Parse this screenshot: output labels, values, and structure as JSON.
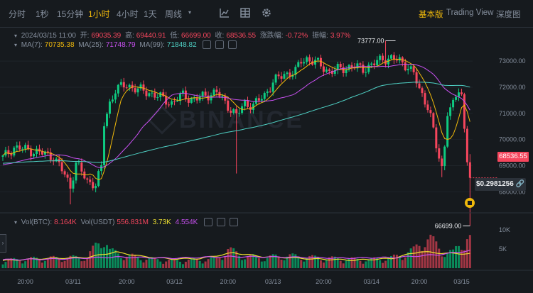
{
  "toolbar": {
    "intervals": [
      "分时",
      "1秒",
      "15分钟",
      "1小时",
      "4小时",
      "1天",
      "周线"
    ],
    "active_interval": "1小时",
    "chart_types": [
      "基本版",
      "Trading View",
      "深度图"
    ],
    "active_chart_type": "基本版"
  },
  "ohlc": {
    "date": "2024/03/15 11:00",
    "open_label": "开:",
    "open": "69035.39",
    "high_label": "高:",
    "high": "69440.91",
    "low_label": "低:",
    "low": "66699.00",
    "close_label": "收:",
    "close": "68536.55",
    "change_label": "涨跌幅:",
    "change": "-0.72%",
    "amplitude_label": "振幅:",
    "amplitude": "3.97%"
  },
  "ma": {
    "ma7_label": "MA(7):",
    "ma7": "70735.38",
    "ma25_label": "MA(25):",
    "ma25": "71748.79",
    "ma99_label": "MA(99):",
    "ma99": "71848.82"
  },
  "vol": {
    "btc_label": "Vol(BTC):",
    "btc": "8.164K",
    "usdt_label": "Vol(USDT)",
    "usdt": "556.831M",
    "v1": "3.73K",
    "v2": "4.554K"
  },
  "watermark": "BINANCE",
  "current_price_tag": "68536.55",
  "position_label": "$0.2981256",
  "colors": {
    "up": "#0ecb81",
    "down": "#f6465d",
    "accent": "#f0b90b",
    "ma7": "#f0b90b",
    "ma25": "#c850f0",
    "ma99": "#4fd1c5"
  },
  "chart_data": {
    "type": "candlestick",
    "price_axis": {
      "ticks": [
        "73000.00",
        "72000.00",
        "71000.00",
        "70000.00",
        "69000.00",
        "68000.00"
      ],
      "ylim": [
        67250,
        73600
      ]
    },
    "volume_axis": {
      "ticks": [
        "10K",
        "5K"
      ],
      "ylim": [
        0,
        12000
      ]
    },
    "x_ticks": [
      "20:00",
      "03/11",
      "20:00",
      "03/12",
      "20:00",
      "03/13",
      "20:00",
      "03/14",
      "20:00",
      "03/15"
    ],
    "max_label": "73777.00",
    "min_label": "66699.00",
    "anchors": [
      [
        0,
        69300
      ],
      [
        4,
        69700
      ],
      [
        9,
        69600
      ],
      [
        13,
        69500
      ],
      [
        18,
        69350
      ],
      [
        22,
        68650
      ],
      [
        24,
        68200
      ],
      [
        26,
        69100
      ],
      [
        30,
        68400
      ],
      [
        33,
        68300
      ],
      [
        35,
        68900
      ],
      [
        36,
        70600
      ],
      [
        38,
        71400
      ],
      [
        40,
        71900
      ],
      [
        44,
        72100
      ],
      [
        48,
        71900
      ],
      [
        52,
        71800
      ],
      [
        56,
        71600
      ],
      [
        60,
        71400
      ],
      [
        64,
        71700
      ],
      [
        68,
        71500
      ],
      [
        72,
        71700
      ],
      [
        76,
        71800
      ],
      [
        80,
        71300
      ],
      [
        83,
        70900
      ],
      [
        86,
        71400
      ],
      [
        89,
        71300
      ],
      [
        93,
        71700
      ],
      [
        96,
        72200
      ],
      [
        100,
        72500
      ],
      [
        104,
        72600
      ],
      [
        106,
        73000
      ],
      [
        108,
        73100
      ],
      [
        112,
        72900
      ],
      [
        116,
        72600
      ],
      [
        120,
        72700
      ],
      [
        124,
        72800
      ],
      [
        128,
        72700
      ],
      [
        132,
        72900
      ],
      [
        135,
        73100
      ],
      [
        138,
        73100
      ],
      [
        141,
        73000
      ],
      [
        144,
        72800
      ],
      [
        146,
        72500
      ],
      [
        148,
        71900
      ],
      [
        151,
        71300
      ],
      [
        152,
        70900
      ],
      [
        154,
        69700
      ],
      [
        156,
        68900
      ],
      [
        157,
        69800
      ],
      [
        158,
        71100
      ],
      [
        160,
        71300
      ],
      [
        162,
        71900
      ],
      [
        163,
        71700
      ],
      [
        164,
        70400
      ],
      [
        165,
        69300
      ],
      [
        166,
        68540
      ]
    ],
    "volume_anchors": [
      [
        0,
        1800
      ],
      [
        10,
        2200
      ],
      [
        30,
        2600
      ],
      [
        36,
        7800
      ],
      [
        38,
        4000
      ],
      [
        44,
        3000
      ],
      [
        52,
        2200
      ],
      [
        60,
        1800
      ],
      [
        70,
        2000
      ],
      [
        76,
        2200
      ],
      [
        80,
        4500
      ],
      [
        84,
        3200
      ],
      [
        92,
        2400
      ],
      [
        100,
        3000
      ],
      [
        108,
        2600
      ],
      [
        120,
        2200
      ],
      [
        130,
        2000
      ],
      [
        138,
        2400
      ],
      [
        146,
        4200
      ],
      [
        150,
        7200
      ],
      [
        152,
        6800
      ],
      [
        156,
        4200
      ],
      [
        160,
        3600
      ],
      [
        163,
        6200
      ],
      [
        166,
        8164
      ]
    ],
    "vol_ma1": [
      [
        0,
        2000
      ],
      [
        15,
        2500
      ],
      [
        30,
        2800
      ],
      [
        40,
        4200
      ],
      [
        50,
        3000
      ],
      [
        60,
        2400
      ],
      [
        70,
        2500
      ],
      [
        82,
        4000
      ],
      [
        92,
        3000
      ],
      [
        100,
        2800
      ],
      [
        110,
        2400
      ],
      [
        125,
        2100
      ],
      [
        138,
        2500
      ],
      [
        148,
        4300
      ],
      [
        156,
        3900
      ],
      [
        166,
        3730
      ]
    ],
    "vol_ma2": [
      [
        0,
        2200
      ],
      [
        20,
        2400
      ],
      [
        40,
        2900
      ],
      [
        60,
        2600
      ],
      [
        80,
        3000
      ],
      [
        100,
        2900
      ],
      [
        120,
        2600
      ],
      [
        140,
        2800
      ],
      [
        156,
        3600
      ],
      [
        166,
        4554
      ]
    ]
  }
}
